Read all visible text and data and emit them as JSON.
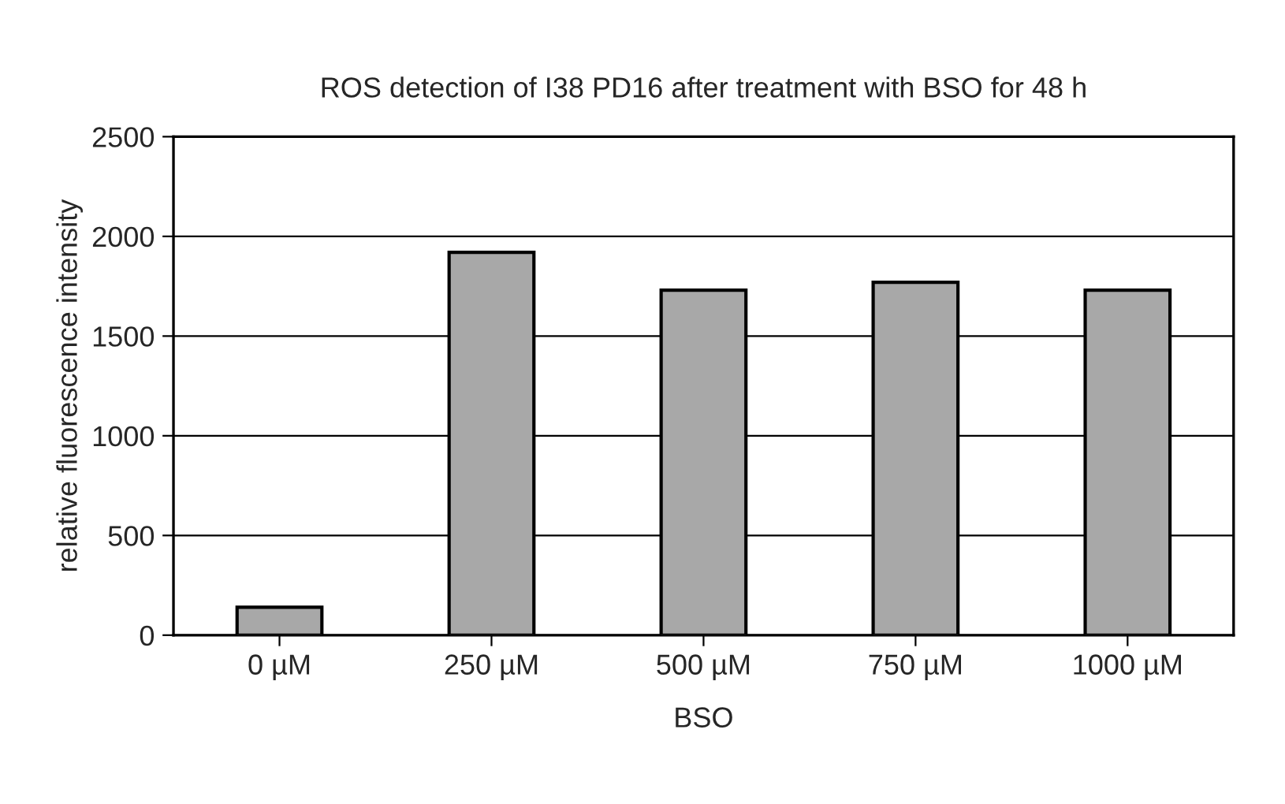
{
  "chart_data": {
    "type": "bar",
    "title": "ROS detection of I38 PD16 after treatment with BSO for 48 h",
    "xlabel": "BSO",
    "ylabel": "relative fluorescence intensity",
    "categories": [
      "0 µM",
      "250 µM",
      "500 µM",
      "750 µM",
      "1000 µM"
    ],
    "values": [
      140,
      1920,
      1730,
      1770,
      1730
    ],
    "color": "#a8a8a8",
    "ylim": [
      0,
      2500
    ],
    "yticks": [
      0,
      500,
      1000,
      1500,
      2000,
      2500
    ],
    "grid": "y",
    "legend": false
  }
}
